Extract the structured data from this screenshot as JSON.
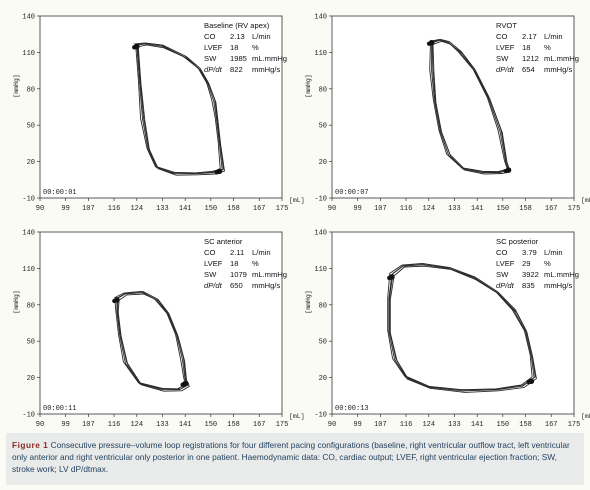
{
  "caption": {
    "label": "Figure 1",
    "text": "Consecutive pressure–volume loop registrations for four different pacing configurations (baseline, right ventricular outflow tract, left ventricular only anterior and right ventricular only posterior in one patient. Haemodynamic data: CO, cardiac output; LVEF, right ventricular ejection fraction; SW, stroke work; LV dP/dtmax."
  },
  "chart_data": [
    {
      "type": "line",
      "title": "Baseline (RV apex)",
      "ylabel": "[mmHg]",
      "xlabel": "[mL]",
      "timestamp": "00:00:01",
      "xlim": [
        90,
        175
      ],
      "ylim": [
        -10,
        140
      ],
      "x_ticks": [
        "90",
        "99",
        "107",
        "116",
        "124",
        "133",
        "141",
        "150",
        "158",
        "167",
        "175"
      ],
      "y_ticks": [
        "140",
        "110",
        "80",
        "50",
        "20",
        "-10"
      ],
      "legend": [
        {
          "label": "CO",
          "value": "2.13",
          "unit": "L/min"
        },
        {
          "label": "LVEF",
          "value": "18",
          "unit": "%"
        },
        {
          "label": "SW",
          "value": "1985",
          "unit": "mL.mmHg"
        },
        {
          "label": "dP/dt",
          "value": "822",
          "unit": "mmHg/s"
        }
      ],
      "series": [
        {
          "x": [
            124,
            127,
            133,
            141,
            146,
            149,
            151,
            152,
            153,
            154,
            151,
            145,
            137,
            131,
            128,
            126,
            125,
            124
          ],
          "y": [
            116,
            117,
            115,
            106,
            96,
            84,
            70,
            55,
            35,
            13,
            11,
            10,
            10,
            15,
            30,
            55,
            85,
            116
          ]
        }
      ],
      "markers": [
        {
          "x": 124,
          "y": 115
        },
        {
          "x": 153,
          "y": 12
        }
      ]
    },
    {
      "type": "line",
      "title": "RVOT",
      "ylabel": "[mmHg]",
      "xlabel": "[mL]",
      "timestamp": "00:00:07",
      "xlim": [
        90,
        175
      ],
      "ylim": [
        -10,
        140
      ],
      "x_ticks": [
        "90",
        "99",
        "107",
        "116",
        "124",
        "133",
        "141",
        "150",
        "158",
        "167",
        "175"
      ],
      "y_ticks": [
        "140",
        "110",
        "80",
        "50",
        "20",
        "-10"
      ],
      "legend": [
        {
          "label": "CO",
          "value": "2.17",
          "unit": "L/min"
        },
        {
          "label": "LVEF",
          "value": "18",
          "unit": "%"
        },
        {
          "label": "SW",
          "value": "1212",
          "unit": "mL.mmHg"
        },
        {
          "label": "dP/dt",
          "value": "654",
          "unit": "mmHg/s"
        }
      ],
      "series": [
        {
          "x": [
            125,
            128,
            131,
            135,
            140,
            145,
            149,
            151,
            152,
            149,
            143,
            136,
            131,
            128,
            126,
            125,
            125
          ],
          "y": [
            118,
            120,
            118,
            110,
            95,
            72,
            45,
            20,
            13,
            11,
            11,
            14,
            25,
            45,
            70,
            95,
            118
          ]
        }
      ],
      "markers": [
        {
          "x": 125,
          "y": 118
        },
        {
          "x": 152,
          "y": 13
        }
      ]
    },
    {
      "type": "line",
      "title": "SC anterior",
      "ylabel": "[mmHg]",
      "xlabel": "[mL]",
      "timestamp": "00:00:11",
      "xlim": [
        90,
        175
      ],
      "ylim": [
        -10,
        140
      ],
      "x_ticks": [
        "90",
        "99",
        "107",
        "116",
        "124",
        "133",
        "141",
        "150",
        "158",
        "167",
        "175"
      ],
      "y_ticks": [
        "140",
        "110",
        "80",
        "50",
        "20",
        "-10"
      ],
      "legend": [
        {
          "label": "CO",
          "value": "2.11",
          "unit": "L/min"
        },
        {
          "label": "LVEF",
          "value": "18",
          "unit": "%"
        },
        {
          "label": "SW",
          "value": "1079",
          "unit": "mL.mmHg"
        },
        {
          "label": "dP/dt",
          "value": "650",
          "unit": "mmHg/s"
        }
      ],
      "series": [
        {
          "x": [
            117,
            120,
            126,
            131,
            135,
            138,
            140,
            141,
            142,
            139,
            133,
            125,
            120,
            118,
            117,
            117
          ],
          "y": [
            85,
            89,
            90,
            84,
            72,
            55,
            35,
            18,
            14,
            10,
            10,
            15,
            32,
            55,
            75,
            85
          ]
        }
      ],
      "markers": [
        {
          "x": 117,
          "y": 84
        },
        {
          "x": 141,
          "y": 15
        }
      ]
    },
    {
      "type": "line",
      "title": "SC posterior",
      "ylabel": "[mmHg]",
      "xlabel": "[mL]",
      "timestamp": "00:00:13",
      "xlim": [
        90,
        175
      ],
      "ylim": [
        -10,
        140
      ],
      "x_ticks": [
        "90",
        "99",
        "107",
        "116",
        "124",
        "133",
        "141",
        "150",
        "158",
        "167",
        "175"
      ],
      "y_ticks": [
        "140",
        "110",
        "80",
        "50",
        "20",
        "-10"
      ],
      "legend": [
        {
          "label": "CO",
          "value": "3.79",
          "unit": "L/min"
        },
        {
          "label": "LVEF",
          "value": "29",
          "unit": "%"
        },
        {
          "label": "SW",
          "value": "3922",
          "unit": "mL.mmHg"
        },
        {
          "label": "dP/dt",
          "value": "835",
          "unit": "mmHg/s"
        }
      ],
      "series": [
        {
          "x": [
            111,
            115,
            122,
            131,
            140,
            148,
            154,
            158,
            160,
            161,
            157,
            148,
            136,
            124,
            116,
            112,
            110,
            110,
            111
          ],
          "y": [
            105,
            112,
            113,
            110,
            102,
            90,
            75,
            58,
            38,
            20,
            13,
            10,
            9,
            12,
            20,
            35,
            58,
            85,
            105
          ]
        }
      ],
      "markers": [
        {
          "x": 111,
          "y": 103
        },
        {
          "x": 160,
          "y": 17
        }
      ]
    }
  ]
}
